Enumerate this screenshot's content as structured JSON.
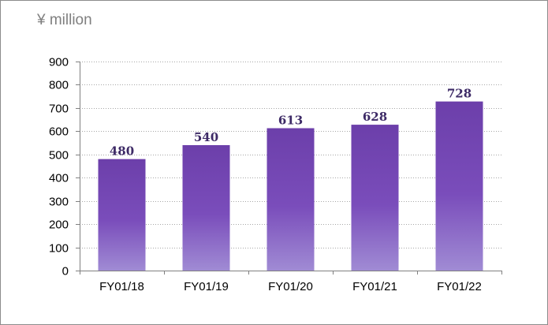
{
  "chart_data": {
    "type": "bar",
    "unit_label": "¥ million",
    "categories": [
      "FY01/18",
      "FY01/19",
      "FY01/20",
      "FY01/21",
      "FY01/22"
    ],
    "values": [
      480,
      540,
      613,
      628,
      728
    ],
    "xlabel": "",
    "ylabel": "",
    "ylim": [
      0,
      900
    ],
    "yticks": [
      0,
      100,
      200,
      300,
      400,
      500,
      600,
      700,
      800,
      900
    ],
    "grid": true,
    "data_labels": true,
    "legend": "none"
  },
  "colors": {
    "bar_top": "#6c3faa",
    "bar_mid": "#7a4dbb",
    "bar_bottom": "#a08bd4",
    "data_label": "#3d2a66",
    "grid": "#a6a6a6",
    "axis": "#808080",
    "frame": "#8c8c8c",
    "unit_text": "#7f7f7f"
  }
}
